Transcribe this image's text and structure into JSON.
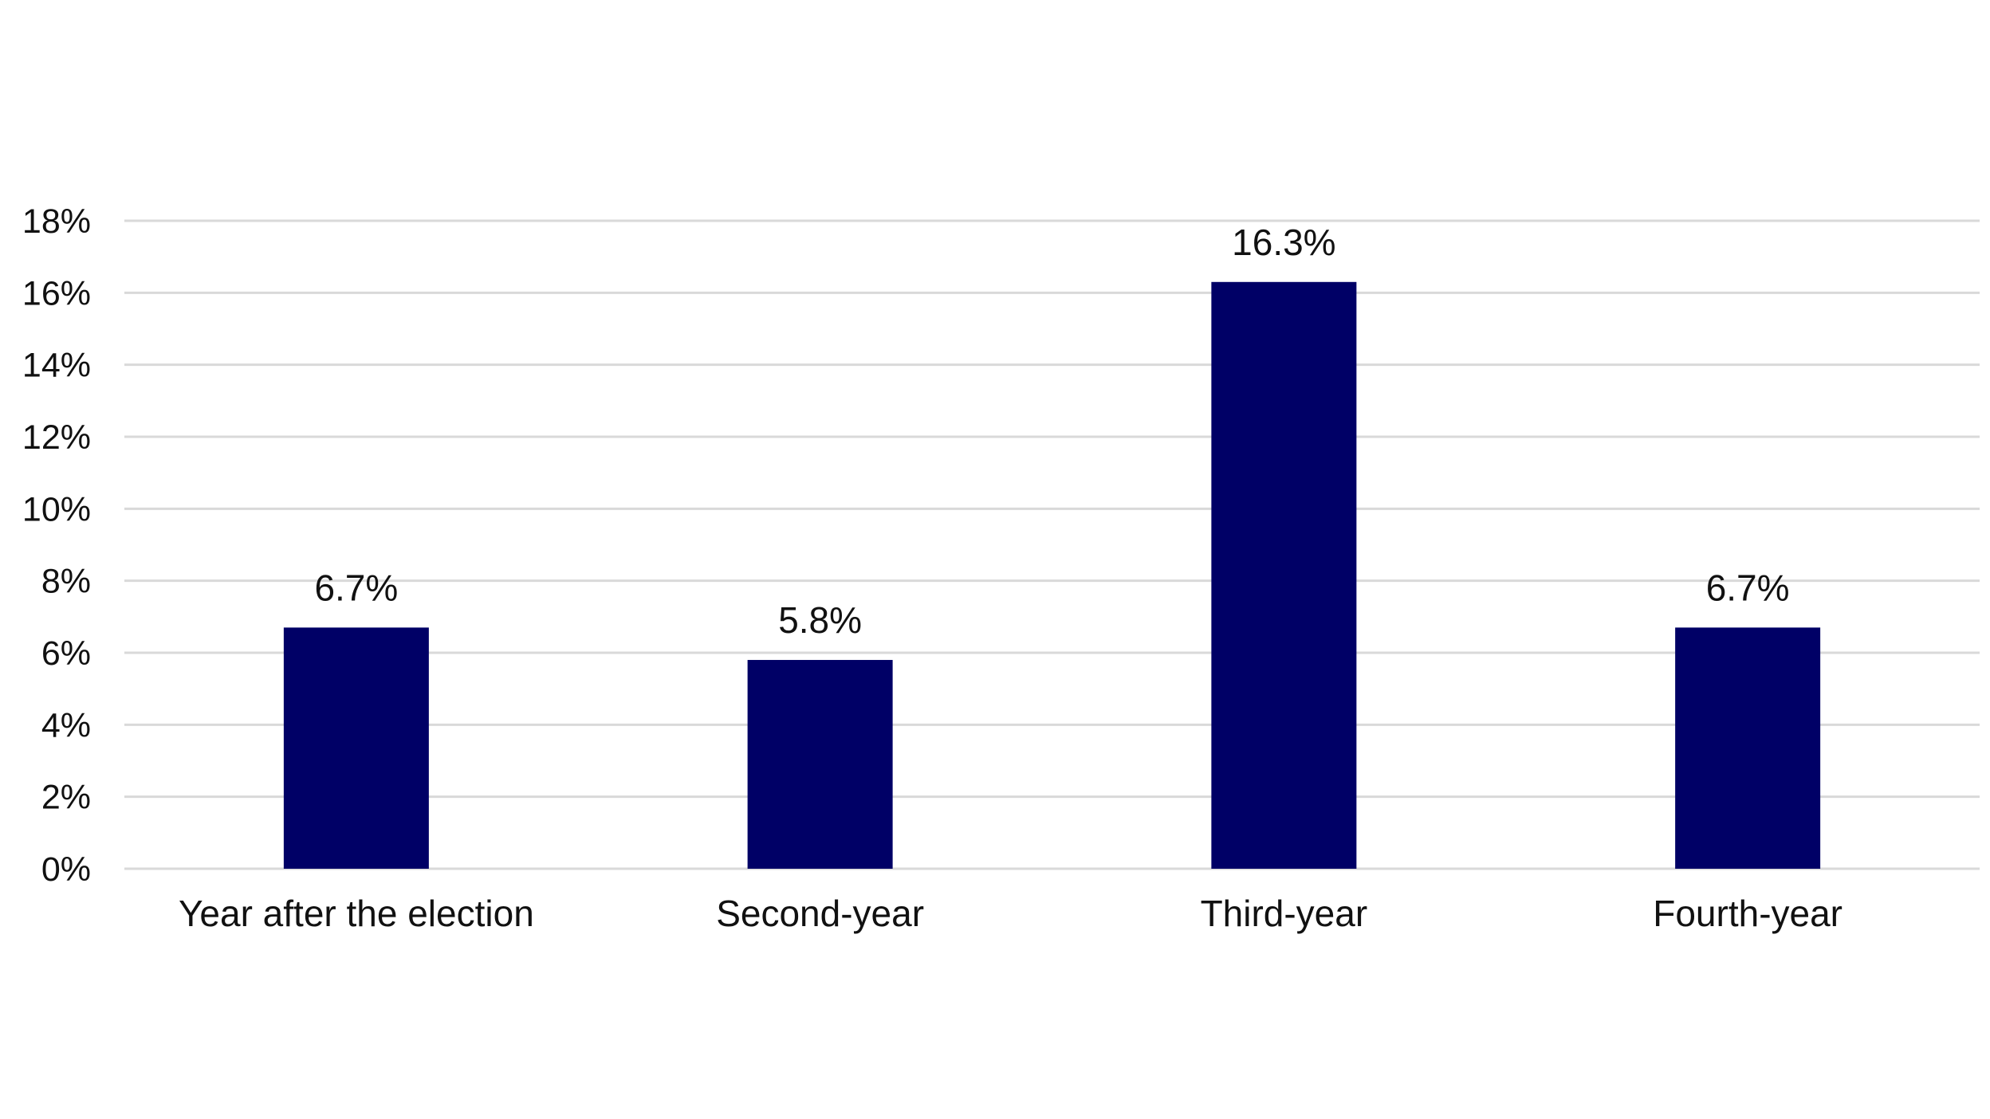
{
  "chart_data": {
    "type": "bar",
    "title": "",
    "xlabel": "",
    "ylabel": "",
    "categories": [
      "Year after the election",
      "Second-year",
      "Third-year",
      "Fourth-year"
    ],
    "values": [
      6.7,
      5.8,
      16.3,
      6.7
    ],
    "data_labels": [
      "6.7%",
      "5.8%",
      "16.3%",
      "6.7%"
    ],
    "ylim": [
      0,
      18
    ],
    "yticks": [
      0,
      2,
      4,
      6,
      8,
      10,
      12,
      14,
      16,
      18
    ],
    "ytick_labels": [
      "0%",
      "2%",
      "4%",
      "6%",
      "8%",
      "10%",
      "12%",
      "14%",
      "16%",
      "18%"
    ],
    "grid": true,
    "legend": "none",
    "bar_color": "#000066",
    "grid_color": "#d9d9d9"
  }
}
